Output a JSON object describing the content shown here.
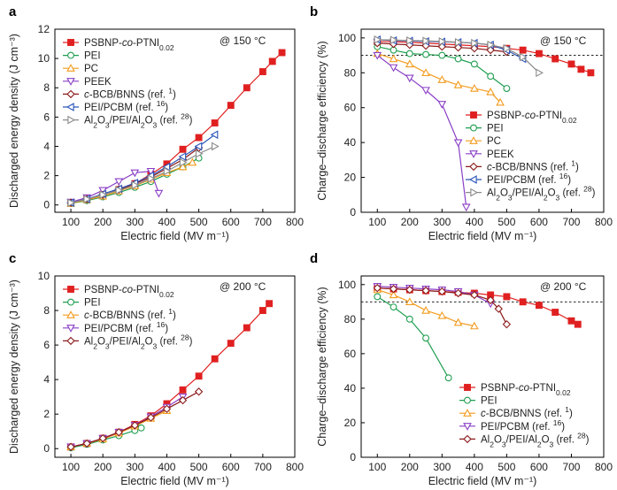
{
  "chart_data": [
    {
      "panel": "a",
      "type": "line",
      "annotation": "@ 150 °C",
      "xlabel": "Electric field (MV m⁻¹)",
      "ylabel": "Discharged energy density (J cm⁻³)",
      "xlim": [
        50,
        800
      ],
      "ylim": [
        -0.5,
        12
      ],
      "xticks": [
        100,
        200,
        300,
        400,
        500,
        600,
        700,
        800
      ],
      "yticks": [
        0,
        2,
        4,
        6,
        8,
        10,
        12
      ],
      "legend_placement": "top-left",
      "series": [
        {
          "name": "PSBNP-co-PTNI0.02",
          "color": "#e02020",
          "marker": "square",
          "filled": true,
          "x": [
            100,
            150,
            200,
            250,
            300,
            350,
            400,
            450,
            500,
            550,
            600,
            650,
            700,
            730,
            760
          ],
          "y": [
            0.15,
            0.4,
            0.7,
            1.05,
            1.45,
            2.1,
            2.8,
            3.8,
            4.6,
            5.6,
            6.8,
            8.0,
            9.1,
            9.8,
            10.4
          ]
        },
        {
          "name": "PEI",
          "color": "#1f9e50",
          "marker": "circle",
          "filled": false,
          "x": [
            100,
            150,
            200,
            250,
            300,
            350,
            400,
            450,
            500
          ],
          "y": [
            0.1,
            0.3,
            0.55,
            0.85,
            1.2,
            1.6,
            2.1,
            2.6,
            3.2
          ]
        },
        {
          "name": "PC",
          "color": "#f39c1f",
          "marker": "triangle-up",
          "filled": false,
          "x": [
            100,
            150,
            200,
            250,
            300,
            350,
            400,
            450,
            480
          ],
          "y": [
            0.1,
            0.35,
            0.6,
            0.95,
            1.3,
            1.75,
            2.2,
            2.6,
            2.9
          ]
        },
        {
          "name": "PEEK",
          "color": "#8a3fc6",
          "marker": "triangle-down",
          "filled": false,
          "x": [
            100,
            150,
            200,
            250,
            300,
            350,
            375
          ],
          "y": [
            0.2,
            0.5,
            1.0,
            1.6,
            2.2,
            2.3,
            0.8
          ]
        },
        {
          "name": "c-BCB/BNNS (ref. 1)",
          "color": "#8b1a1a",
          "marker": "diamond",
          "filled": false,
          "x": [
            100,
            150,
            200,
            250,
            300,
            350,
            400,
            450,
            500
          ],
          "y": [
            0.15,
            0.4,
            0.7,
            1.05,
            1.45,
            1.9,
            2.5,
            3.1,
            3.9
          ]
        },
        {
          "name": "PEI/PCBM (ref. 16)",
          "color": "#2b56b8",
          "marker": "triangle-left",
          "filled": false,
          "x": [
            100,
            150,
            200,
            250,
            300,
            350,
            400,
            450,
            500,
            550
          ],
          "y": [
            0.15,
            0.4,
            0.75,
            1.1,
            1.5,
            2.0,
            2.6,
            3.3,
            4.0,
            4.8
          ]
        },
        {
          "name": "Al2O3/PEI/Al2O3 (ref. 28)",
          "color": "#8c8c8c",
          "marker": "triangle-right",
          "filled": false,
          "x": [
            100,
            150,
            200,
            250,
            300,
            350,
            400,
            450,
            500,
            550
          ],
          "y": [
            0.15,
            0.4,
            0.7,
            1.0,
            1.35,
            1.8,
            2.3,
            2.9,
            3.5,
            4.0
          ]
        }
      ]
    },
    {
      "panel": "b",
      "type": "line",
      "annotation": "@ 150 °C",
      "xlabel": "Electric field (MV m⁻¹)",
      "ylabel": "Charge–discharge efficiency (%)",
      "xlim": [
        50,
        800
      ],
      "ylim": [
        0,
        105
      ],
      "xticks": [
        100,
        200,
        300,
        400,
        500,
        600,
        700,
        800
      ],
      "yticks": [
        0,
        20,
        40,
        60,
        80,
        100
      ],
      "reference_line": 90,
      "legend_placement": "bottom-right",
      "series": [
        {
          "name": "PSBNP-co-PTNI0.02",
          "color": "#e02020",
          "marker": "square",
          "filled": true,
          "x": [
            100,
            150,
            200,
            250,
            300,
            350,
            400,
            450,
            500,
            550,
            600,
            650,
            700,
            730,
            760
          ],
          "y": [
            98,
            97.8,
            97.5,
            97,
            96.5,
            96,
            95.5,
            95,
            94,
            93,
            91,
            88,
            85,
            82,
            80
          ]
        },
        {
          "name": "PEI",
          "color": "#1f9e50",
          "marker": "circle",
          "filled": false,
          "x": [
            100,
            150,
            200,
            250,
            300,
            350,
            400,
            450,
            500
          ],
          "y": [
            95,
            93,
            91,
            90.5,
            90,
            88,
            85,
            78,
            71
          ]
        },
        {
          "name": "PC",
          "color": "#f39c1f",
          "marker": "triangle-up",
          "filled": false,
          "x": [
            100,
            150,
            200,
            250,
            300,
            350,
            400,
            450,
            480
          ],
          "y": [
            91,
            88,
            85,
            80,
            76,
            73,
            71,
            69,
            63
          ]
        },
        {
          "name": "PEEK",
          "color": "#8a3fc6",
          "marker": "triangle-down",
          "filled": false,
          "x": [
            100,
            150,
            200,
            250,
            300,
            350,
            375
          ],
          "y": [
            90,
            83,
            77,
            70,
            62,
            40,
            3
          ]
        },
        {
          "name": "c-BCB/BNNS (ref. 1)",
          "color": "#8b1a1a",
          "marker": "diamond",
          "filled": false,
          "x": [
            100,
            150,
            200,
            250,
            300,
            350,
            400,
            450,
            500
          ],
          "y": [
            97,
            96.5,
            96,
            95.5,
            95,
            94.5,
            94,
            93,
            92
          ]
        },
        {
          "name": "PEI/PCBM (ref. 16)",
          "color": "#2b56b8",
          "marker": "triangle-left",
          "filled": false,
          "x": [
            100,
            150,
            200,
            250,
            300,
            350,
            400,
            450,
            500,
            550
          ],
          "y": [
            99,
            98.5,
            98.3,
            98,
            97.8,
            97.5,
            97,
            96,
            93,
            88
          ]
        },
        {
          "name": "Al2O3/PEI/Al2O3 (ref. 28)",
          "color": "#8c8c8c",
          "marker": "triangle-right",
          "filled": false,
          "x": [
            100,
            150,
            200,
            250,
            300,
            350,
            400,
            450,
            500,
            550,
            600
          ],
          "y": [
            99,
            98.8,
            98.5,
            98.3,
            98,
            97.5,
            97,
            96,
            94,
            89,
            80
          ]
        }
      ]
    },
    {
      "panel": "c",
      "type": "line",
      "annotation": "@ 200 °C",
      "xlabel": "Electric field (MV m⁻¹)",
      "ylabel": "Discharged energy density (J cm⁻³)",
      "xlim": [
        50,
        800
      ],
      "ylim": [
        -0.5,
        10
      ],
      "xticks": [
        100,
        200,
        300,
        400,
        500,
        600,
        700,
        800
      ],
      "yticks": [
        0,
        2,
        4,
        6,
        8,
        10
      ],
      "legend_placement": "top-left",
      "series": [
        {
          "name": "PSBNP-co-PTNI0.02",
          "color": "#e02020",
          "marker": "square",
          "filled": true,
          "x": [
            100,
            150,
            200,
            250,
            300,
            350,
            400,
            450,
            500,
            550,
            600,
            650,
            700,
            720
          ],
          "y": [
            0.1,
            0.3,
            0.6,
            0.95,
            1.4,
            1.9,
            2.6,
            3.4,
            4.2,
            5.2,
            6.1,
            7.0,
            8.0,
            8.4
          ]
        },
        {
          "name": "PEI",
          "color": "#1f9e50",
          "marker": "circle",
          "filled": false,
          "x": [
            100,
            150,
            200,
            250,
            300,
            320
          ],
          "y": [
            0.05,
            0.25,
            0.5,
            0.75,
            1.05,
            1.2
          ]
        },
        {
          "name": "c-BCB/BNNS (ref. 1)",
          "color": "#f39c1f",
          "marker": "triangle-up",
          "filled": false,
          "x": [
            100,
            150,
            200,
            250,
            300,
            350,
            400
          ],
          "y": [
            0.1,
            0.3,
            0.55,
            0.9,
            1.3,
            1.75,
            2.2
          ]
        },
        {
          "name": "PEI/PCBM (ref. 16)",
          "color": "#8a3fc6",
          "marker": "triangle-down",
          "filled": false,
          "x": [
            100,
            150,
            200,
            250,
            300,
            350,
            400,
            450
          ],
          "y": [
            0.1,
            0.3,
            0.6,
            0.95,
            1.35,
            1.85,
            2.4,
            3.0
          ]
        },
        {
          "name": "Al2O3/PEI/Al2O3 (ref. 28)",
          "color": "#8b1a1a",
          "marker": "diamond",
          "filled": false,
          "x": [
            100,
            150,
            200,
            250,
            300,
            350,
            400,
            450,
            500
          ],
          "y": [
            0.1,
            0.3,
            0.6,
            0.95,
            1.35,
            1.8,
            2.3,
            2.8,
            3.3
          ]
        }
      ]
    },
    {
      "panel": "d",
      "type": "line",
      "annotation": "@ 200 °C",
      "xlabel": "Electric field (MV m⁻¹)",
      "ylabel": "Charge–discharge efficiency (%)",
      "xlim": [
        50,
        800
      ],
      "ylim": [
        0,
        105
      ],
      "xticks": [
        100,
        200,
        300,
        400,
        500,
        600,
        700,
        800
      ],
      "yticks": [
        0,
        20,
        40,
        60,
        80,
        100
      ],
      "reference_line": 90,
      "legend_placement": "bottom-right",
      "series": [
        {
          "name": "PSBNP-co-PTNI0.02",
          "color": "#e02020",
          "marker": "square",
          "filled": true,
          "x": [
            100,
            150,
            200,
            250,
            300,
            350,
            400,
            450,
            500,
            550,
            600,
            650,
            700,
            720
          ],
          "y": [
            98,
            97.5,
            97,
            96.5,
            96,
            95.5,
            95,
            94,
            93,
            90,
            88,
            84,
            79,
            77
          ]
        },
        {
          "name": "PEI",
          "color": "#1f9e50",
          "marker": "circle",
          "filled": false,
          "x": [
            100,
            150,
            200,
            250,
            320
          ],
          "y": [
            93,
            87,
            80,
            69,
            46
          ]
        },
        {
          "name": "c-BCB/BNNS (ref. 1)",
          "color": "#f39c1f",
          "marker": "triangle-up",
          "filled": false,
          "x": [
            100,
            150,
            200,
            250,
            300,
            350,
            400
          ],
          "y": [
            97,
            94,
            90,
            85,
            82,
            78,
            76
          ]
        },
        {
          "name": "PEI/PCBM (ref. 16)",
          "color": "#8a3fc6",
          "marker": "triangle-down",
          "filled": false,
          "x": [
            100,
            150,
            200,
            250,
            300,
            350,
            400,
            450
          ],
          "y": [
            99,
            98.5,
            98,
            97.5,
            97,
            96,
            94,
            89
          ]
        },
        {
          "name": "Al2O3/PEI/Al2O3 (ref. 28)",
          "color": "#8b1a1a",
          "marker": "diamond",
          "filled": false,
          "x": [
            100,
            150,
            200,
            250,
            300,
            350,
            400,
            450,
            475,
            500
          ],
          "y": [
            98,
            97.5,
            97,
            96.5,
            96,
            95,
            94,
            91,
            86,
            77
          ]
        }
      ]
    }
  ]
}
